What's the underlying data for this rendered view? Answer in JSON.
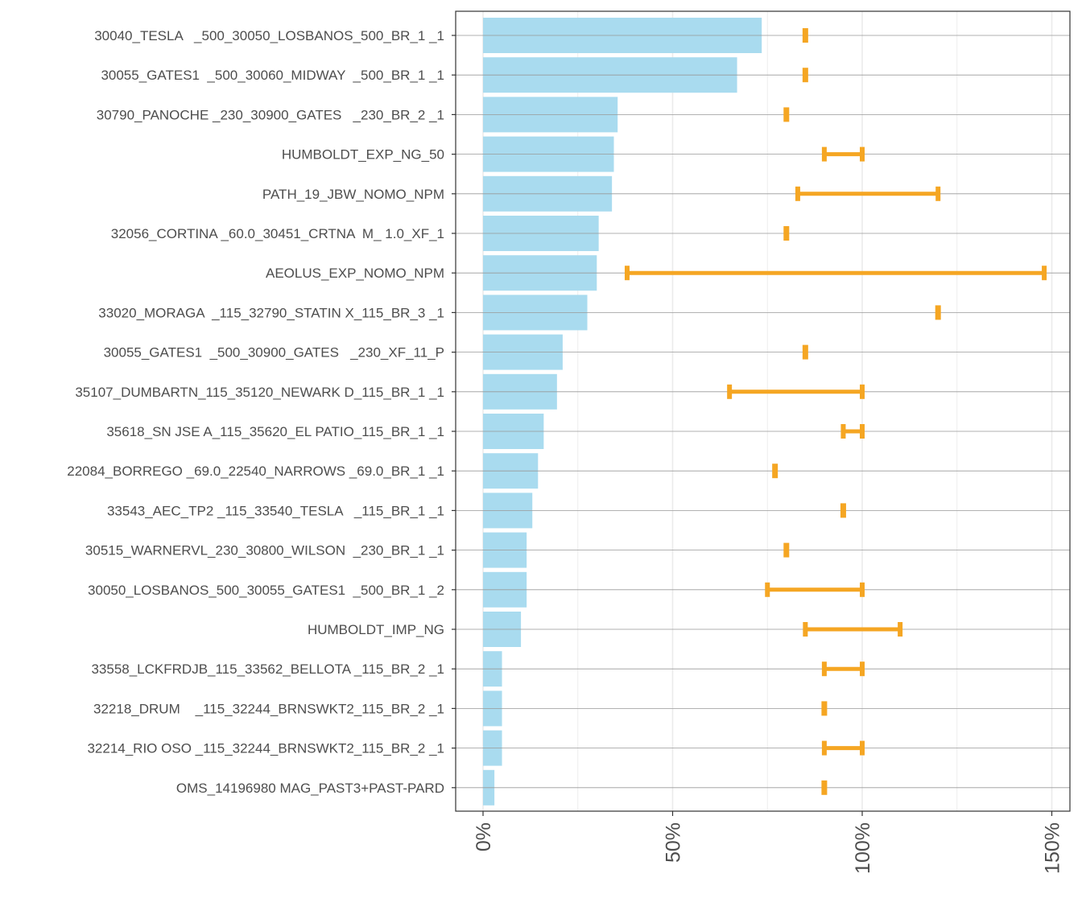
{
  "chart_data": {
    "type": "bar",
    "orientation": "horizontal",
    "title": "",
    "xlabel": "",
    "ylabel": "",
    "xlim": [
      -7,
      155
    ],
    "x_ticks": [
      0,
      50,
      100,
      150
    ],
    "x_tick_labels": [
      "0%",
      "50%",
      "100%",
      "150%"
    ],
    "grid": true,
    "legend": "none",
    "colors": {
      "bar": "#a9dbef",
      "range": "#f5a623",
      "frame": "#333333",
      "grid": "#ebebeb",
      "hline": "#999999"
    },
    "categories": [
      "30040_TESLA   _500_30050_LOSBANOS_500_BR_1 _1",
      "30055_GATES1  _500_30060_MIDWAY  _500_BR_1 _1",
      "30790_PANOCHE _230_30900_GATES   _230_BR_2 _1",
      "HUMBOLDT_EXP_NG_50",
      "PATH_19_JBW_NOMO_NPM",
      "32056_CORTINA _60.0_30451_CRTNA  M_ 1.0_XF_1",
      "AEOLUS_EXP_NOMO_NPM",
      "33020_MORAGA  _115_32790_STATIN X_115_BR_3 _1",
      "30055_GATES1  _500_30900_GATES   _230_XF_11_P",
      "35107_DUMBARTN_115_35120_NEWARK D_115_BR_1 _1",
      "35618_SN JSE A_115_35620_EL PATIO_115_BR_1 _1",
      "22084_BORREGO _69.0_22540_NARROWS _69.0_BR_1 _1",
      "33543_AEC_TP2 _115_33540_TESLA   _115_BR_1 _1",
      "30515_WARNERVL_230_30800_WILSON  _230_BR_1 _1",
      "30050_LOSBANOS_500_30055_GATES1  _500_BR_1 _2",
      "HUMBOLDT_IMP_NG",
      "33558_LCKFRDJB_115_33562_BELLOTA _115_BR_2 _1",
      "32218_DRUM    _115_32244_BRNSWKT2_115_BR_2 _1",
      "32214_RIO OSO _115_32244_BRNSWKT2_115_BR_2 _1",
      "OMS_14196980 MAG_PAST3+PAST-PARD"
    ],
    "values": [
      73.5,
      67,
      35.5,
      34.5,
      34,
      30.5,
      30,
      27.5,
      21,
      19.5,
      16,
      14.5,
      13,
      11.5,
      11.5,
      10,
      5,
      5,
      5,
      3
    ],
    "ranges": [
      [
        85,
        85
      ],
      [
        85,
        85
      ],
      [
        80,
        80
      ],
      [
        90,
        100
      ],
      [
        83,
        120
      ],
      [
        80,
        80
      ],
      [
        38,
        148
      ],
      [
        120,
        120
      ],
      [
        85,
        85
      ],
      [
        65,
        100
      ],
      [
        95,
        100
      ],
      [
        77,
        77
      ],
      [
        95,
        95
      ],
      [
        80,
        80
      ],
      [
        75,
        100
      ],
      [
        85,
        110
      ],
      [
        90,
        100
      ],
      [
        90,
        90
      ],
      [
        90,
        100
      ],
      [
        90,
        90
      ]
    ]
  }
}
